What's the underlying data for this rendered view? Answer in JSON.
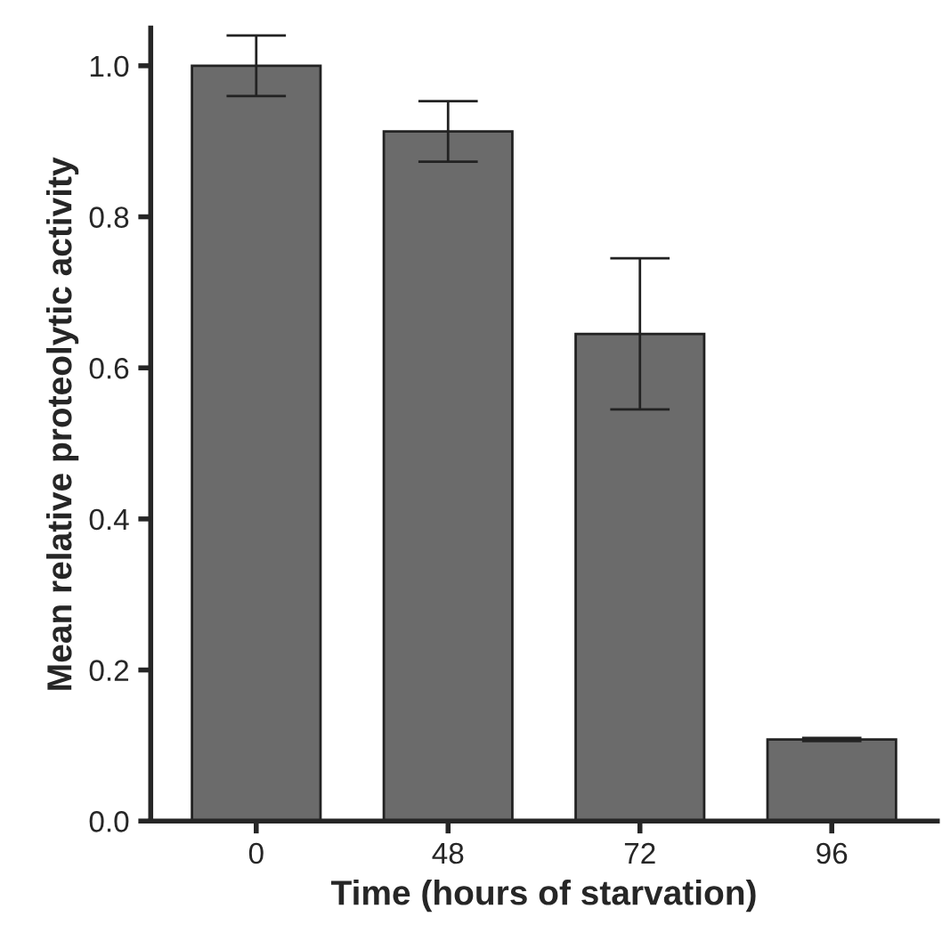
{
  "chart_data": {
    "type": "bar",
    "xlabel": "Time (hours of starvation)",
    "ylabel": "Mean relative proteolytic activity",
    "categories": [
      "0",
      "48",
      "72",
      "96"
    ],
    "values": [
      1.0,
      0.913,
      0.645,
      0.108
    ],
    "errors": [
      0.04,
      0.04,
      0.1,
      0.002
    ],
    "color": "#6b6b6b",
    "ylim": [
      0,
      1.05
    ],
    "yticks": [
      {
        "value": 0,
        "label": "0.0"
      },
      {
        "value": 0.2,
        "label": "0.2"
      },
      {
        "value": 0.4,
        "label": "0.4"
      },
      {
        "value": 0.6,
        "label": "0.6"
      },
      {
        "value": 0.8,
        "label": "0.8"
      },
      {
        "value": 1.0,
        "label": "1.0"
      }
    ],
    "grid": false
  }
}
